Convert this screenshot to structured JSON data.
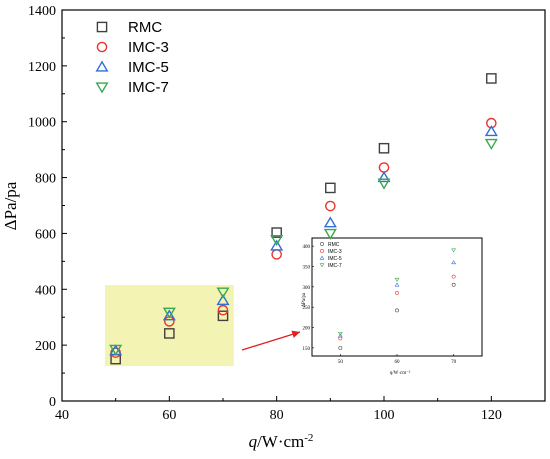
{
  "colors": {
    "RMC": "#404040",
    "IMC-3": "#e8352e",
    "IMC-5": "#2f6fd6",
    "IMC-7": "#3aa84e",
    "highlight": "#f3f3b3",
    "arrow": "#e02020"
  },
  "chart_data": [
    {
      "type": "scatter",
      "title": "",
      "xlabel_italic": "q",
      "xlabel_rest": "/W·cm",
      "xlabel_sup": "-2",
      "ylabel": "ΔPa/pa",
      "xlim": [
        40,
        130
      ],
      "ylim": [
        0,
        1400
      ],
      "xticks": [
        40,
        60,
        80,
        100,
        120
      ],
      "yticks": [
        0,
        200,
        400,
        600,
        800,
        1000,
        1200,
        1400
      ],
      "legend_position": "top-left",
      "series": [
        {
          "name": "RMC",
          "marker": "square",
          "x": [
            50,
            60,
            70,
            80,
            90,
            100,
            120
          ],
          "y": [
            150,
            242,
            305,
            603,
            763,
            905,
            1155
          ]
        },
        {
          "name": "IMC-3",
          "marker": "circle",
          "x": [
            50,
            60,
            70,
            80,
            90,
            100,
            120
          ],
          "y": [
            173,
            285,
            325,
            525,
            698,
            836,
            995
          ]
        },
        {
          "name": "IMC-5",
          "marker": "triangle-up",
          "x": [
            50,
            60,
            70,
            80,
            90,
            100,
            120
          ],
          "y": [
            180,
            305,
            360,
            555,
            638,
            800,
            965
          ]
        },
        {
          "name": "IMC-7",
          "marker": "triangle-down",
          "x": [
            50,
            60,
            70,
            80,
            90,
            100,
            120
          ],
          "y": [
            185,
            318,
            390,
            578,
            600,
            780,
            922
          ]
        }
      ],
      "highlight_region": {
        "x": [
          48,
          72
        ],
        "y": [
          125,
          415
        ]
      }
    },
    {
      "type": "scatter",
      "title": "",
      "xlabel": "q/W·cm⁻²",
      "ylabel": "ΔPa/pa",
      "xlim": [
        45,
        75
      ],
      "ylim": [
        130,
        420
      ],
      "xticks": [
        50,
        60,
        70
      ],
      "yticks": [
        150,
        200,
        250,
        300,
        350,
        400
      ],
      "series": [
        {
          "name": "RMC",
          "marker": "circle",
          "x": [
            50,
            60,
            70
          ],
          "y": [
            150,
            242,
            305
          ]
        },
        {
          "name": "IMC-3",
          "marker": "circle",
          "x": [
            50,
            60,
            70
          ],
          "y": [
            173,
            285,
            325
          ]
        },
        {
          "name": "IMC-5",
          "marker": "triangle-up",
          "x": [
            50,
            60,
            70
          ],
          "y": [
            180,
            305,
            360
          ]
        },
        {
          "name": "IMC-7",
          "marker": "triangle-down",
          "x": [
            50,
            60,
            70
          ],
          "y": [
            185,
            318,
            390
          ]
        }
      ]
    }
  ]
}
